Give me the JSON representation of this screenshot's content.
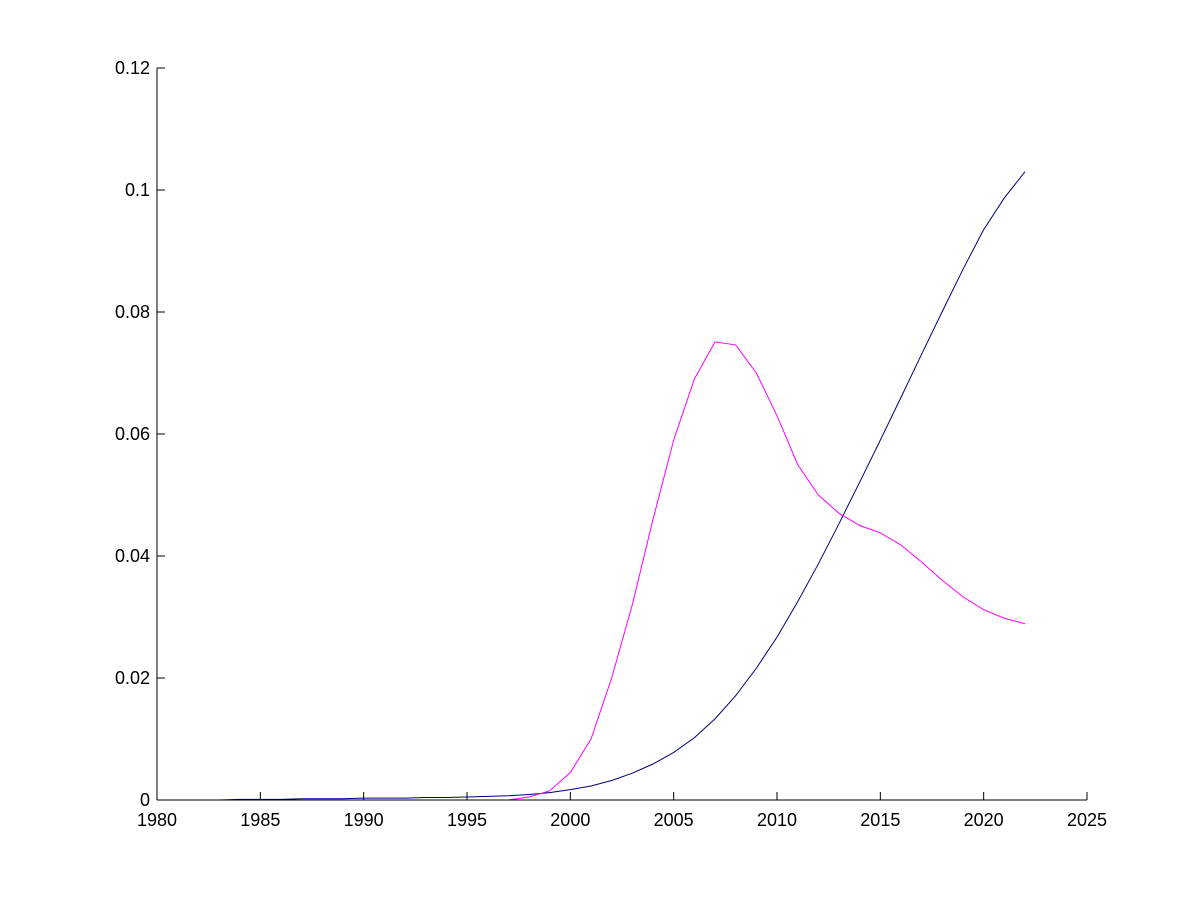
{
  "chart_data": {
    "type": "line",
    "title": "",
    "xlabel": "",
    "ylabel": "",
    "xlim": [
      1980,
      2025
    ],
    "ylim": [
      0,
      0.12
    ],
    "grid": false,
    "legend": "none",
    "x_ticks": [
      1980,
      1985,
      1990,
      1995,
      2000,
      2005,
      2010,
      2015,
      2020,
      2025
    ],
    "x_tick_labels": [
      "1980",
      "1985",
      "1990",
      "1995",
      "2000",
      "2005",
      "2010",
      "2015",
      "2020",
      "2025"
    ],
    "y_ticks": [
      0,
      0.02,
      0.04,
      0.06,
      0.08,
      0.1,
      0.12
    ],
    "y_tick_labels": [
      "0",
      "0.02",
      "0.04",
      "0.06",
      "0.08",
      "0.1",
      "0.12"
    ],
    "x": [
      1980,
      1981,
      1982,
      1983,
      1984,
      1985,
      1986,
      1987,
      1988,
      1989,
      1990,
      1991,
      1992,
      1993,
      1994,
      1995,
      1996,
      1997,
      1998,
      1999,
      2000,
      2001,
      2002,
      2003,
      2004,
      2005,
      2006,
      2007,
      2008,
      2009,
      2010,
      2011,
      2012,
      2013,
      2014,
      2015,
      2016,
      2017,
      2018,
      2019,
      2020,
      2021,
      2022
    ],
    "series": [
      {
        "color": "#00007f",
        "values": [
          0,
          0,
          0,
          0,
          0.0001,
          0.0001,
          0.0001,
          0.0002,
          0.0002,
          0.0002,
          0.0003,
          0.0003,
          0.0003,
          0.0004,
          0.0004,
          0.0005,
          0.0006,
          0.0007,
          0.0009,
          0.0012,
          0.0017,
          0.0023,
          0.0032,
          0.0044,
          0.0059,
          0.0078,
          0.0102,
          0.0133,
          0.0171,
          0.0216,
          0.0267,
          0.0325,
          0.0387,
          0.0453,
          0.0521,
          0.059,
          0.066,
          0.0731,
          0.0801,
          0.087,
          0.0935,
          0.0987,
          0.103
        ]
      },
      {
        "color": "#ff00ff",
        "values": [
          0,
          0,
          0,
          0,
          0,
          0,
          0,
          0,
          0,
          0,
          0,
          0,
          0,
          0,
          0,
          0,
          0,
          0,
          0.0005,
          0.0015,
          0.0045,
          0.01,
          0.02,
          0.032,
          0.046,
          0.059,
          0.069,
          0.0751,
          0.0746,
          0.07,
          0.063,
          0.055,
          0.05,
          0.047,
          0.045,
          0.0438,
          0.0418,
          0.039,
          0.036,
          0.0333,
          0.0312,
          0.0298,
          0.0289
        ]
      }
    ]
  }
}
